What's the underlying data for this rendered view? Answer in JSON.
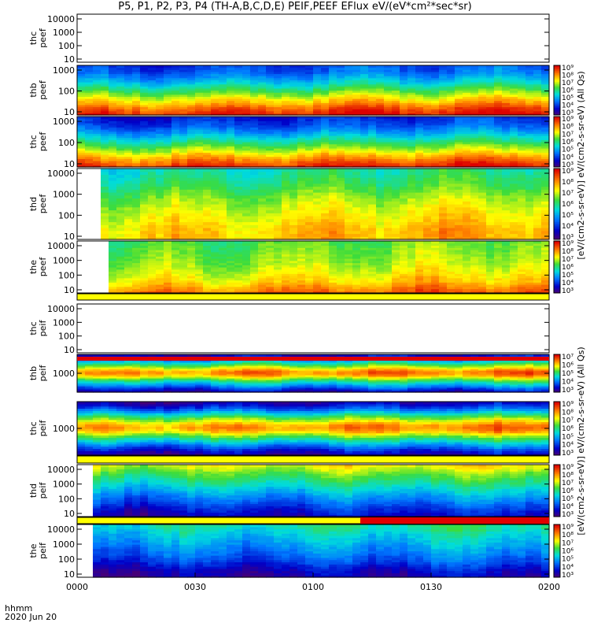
{
  "title": "P5, P1, P2, P3, P4 (TH-A,B,C,D,E) PEIF,PEEF EFlux eV/(eV*cm²*sec*sr)",
  "x_axis": {
    "label_line1": "hhmm",
    "label_line2": "2020 Jun 20",
    "ticks": [
      "0000",
      "0030",
      "0100",
      "0130",
      "0200"
    ]
  },
  "colorbar_labels": {
    "electron": "[eV/(cm2-s-sr-eV)] eV/(cm2-s-sr-eV) (All Qs)",
    "ion": "[eV/(cm2-s-sr-eV)] eV/(cm2-s-sr-eV) (All Qs)"
  },
  "colorbar_ticks": [
    "10³",
    "10⁴",
    "10⁵",
    "10⁶",
    "10⁷",
    "10⁸",
    "10⁹"
  ],
  "colors": {
    "red": "#e00000",
    "yellow": "#ffff00",
    "white": "#ffffff"
  },
  "chart_data": [
    {
      "type": "heatmap",
      "panel": "thc peef",
      "ylabel": "thc\npeef",
      "yticks": [
        "10",
        "100",
        "1000",
        "10000"
      ],
      "has_data": false,
      "colorbar": false
    },
    {
      "type": "heatmap",
      "panel": "thb peef",
      "ylabel": "thb\npeef",
      "yticks": [
        "10",
        "100",
        "1000"
      ],
      "has_data": true,
      "colorbar": true,
      "profile": [
        8.6,
        8.2,
        7.6,
        7.0,
        6.4,
        5.8,
        5.2,
        4.7,
        4.3,
        4.1
      ]
    },
    {
      "type": "heatmap",
      "panel": "thc peef",
      "ylabel": "thc\npeef",
      "yticks": [
        "10",
        "100",
        "1000"
      ],
      "has_data": true,
      "colorbar": true,
      "profile": [
        8.5,
        8.0,
        7.4,
        6.7,
        6.1,
        5.5,
        4.9,
        4.4,
        4.0,
        3.8
      ]
    },
    {
      "type": "heatmap",
      "panel": "thd peef",
      "ylabel": "thd\npeef",
      "yticks": [
        "10",
        "100",
        "1000",
        "10000"
      ],
      "has_data": true,
      "colorbar": true,
      "start": 0.04,
      "profile": [
        7.4,
        7.4,
        7.2,
        7.0,
        6.8,
        6.6,
        6.3,
        6.0,
        5.8,
        5.6
      ]
    },
    {
      "type": "heatmap",
      "panel": "the peef",
      "ylabel": "the\npeef",
      "yticks": [
        "10",
        "100",
        "1000",
        "10000"
      ],
      "has_data": true,
      "colorbar": true,
      "start": 0.06,
      "profile": [
        8.0,
        7.6,
        7.2,
        7.0,
        6.8,
        6.6,
        6.5,
        6.4,
        6.3,
        6.2
      ]
    },
    {
      "type": "heatmap",
      "panel": "thc peif",
      "ylabel": "thc\npeif",
      "yticks": [
        "10",
        "100",
        "1000",
        "10000"
      ],
      "has_data": false,
      "colorbar": false
    },
    {
      "type": "heatmap",
      "panel": "thb peif",
      "ylabel": "thb\npeif",
      "yticks": [
        "1000"
      ],
      "has_data": true,
      "colorbar": true,
      "profile": [
        3.3,
        4.0,
        4.8,
        5.6,
        6.5,
        7.6,
        7.9,
        7.1,
        6.2,
        5.3,
        4.2,
        3.4
      ]
    },
    {
      "type": "heatmap",
      "panel": "thc peif",
      "ylabel": "thc\npeif",
      "yticks": [
        "1000"
      ],
      "has_data": true,
      "colorbar": true,
      "profile": [
        3.2,
        3.8,
        4.6,
        5.5,
        6.4,
        7.5,
        7.8,
        7.0,
        6.1,
        5.0,
        4.0,
        3.3
      ]
    },
    {
      "type": "heatmap",
      "panel": "thd peif",
      "ylabel": "thd\npeif",
      "yticks": [
        "10",
        "100",
        "1000",
        "10000"
      ],
      "has_data": true,
      "colorbar": true,
      "start": 0.02,
      "profile": [
        3.4,
        3.8,
        4.3,
        4.8,
        5.3,
        5.8,
        6.3,
        6.9
      ]
    },
    {
      "type": "heatmap",
      "panel": "the peif",
      "ylabel": "the\npeif",
      "yticks": [
        "10",
        "100",
        "1000",
        "10000"
      ],
      "has_data": true,
      "colorbar": true,
      "start": 0.02,
      "profile": [
        3.2,
        3.5,
        4.0,
        4.4,
        4.7,
        5.0,
        5.3,
        5.6
      ]
    }
  ]
}
